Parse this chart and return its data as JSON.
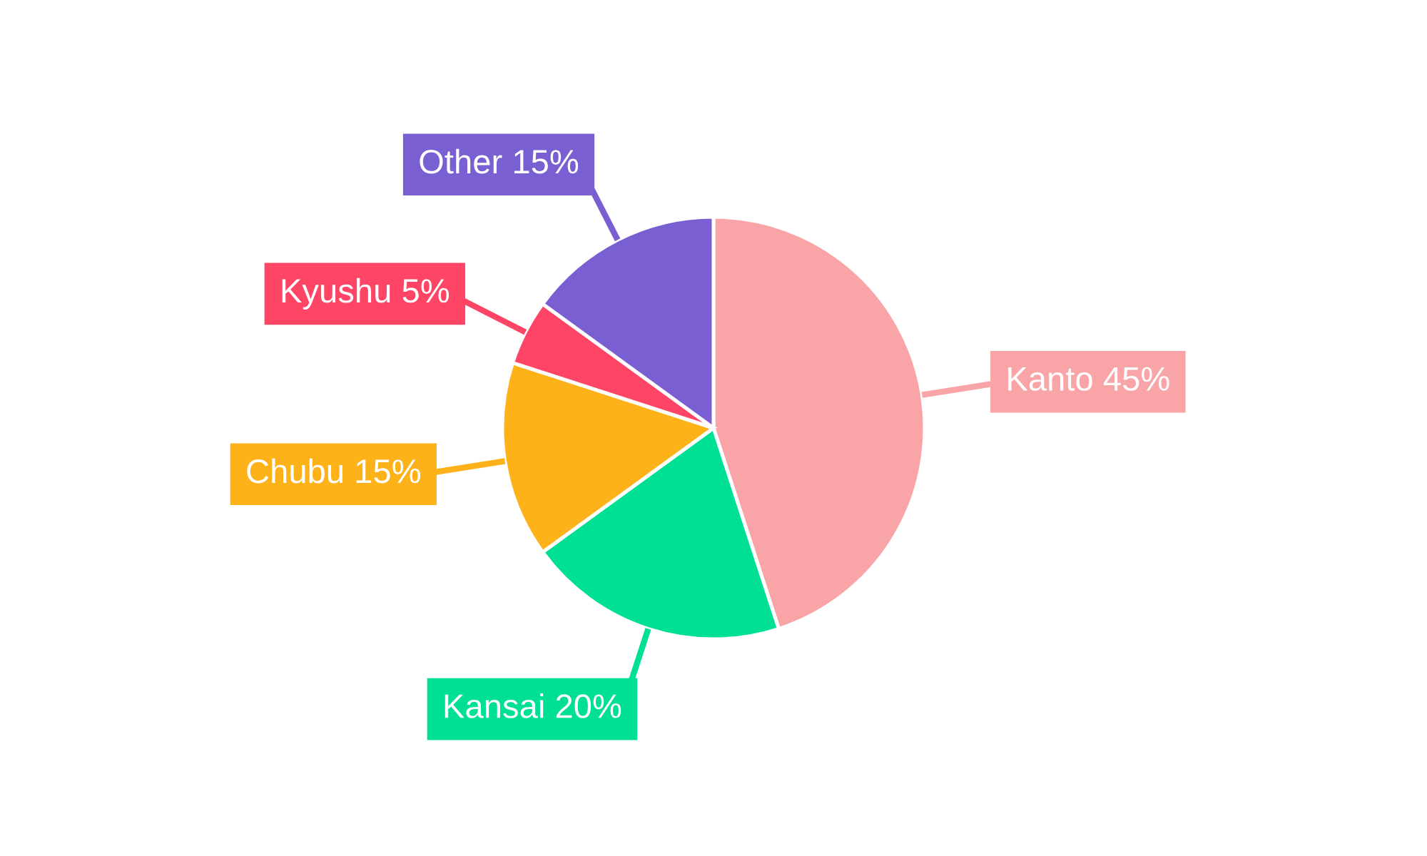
{
  "chart_data": {
    "type": "pie",
    "categories": [
      "Kanto",
      "Kansai",
      "Chubu",
      "Kyushu",
      "Other"
    ],
    "values": [
      45,
      20,
      15,
      5,
      15
    ],
    "value_labels": [
      "45%",
      "20%",
      "15%",
      "5%",
      "15%"
    ],
    "colors": [
      "#f9a5a7",
      "#00e094",
      "#fdb219",
      "#ff4566",
      "#7a5fd2"
    ],
    "legend": false
  }
}
